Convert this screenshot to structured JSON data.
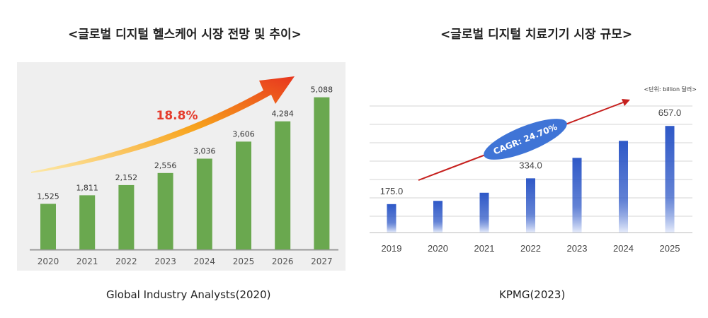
{
  "left": {
    "title": "<글로벌 디지털 헬스케어 시장 전망 및 추이>",
    "source": "Global Industry Analysts(2020)"
  },
  "right": {
    "title": "<글로벌 디지털 치료기기 시장 규모>",
    "source": "KPMG(2023)"
  },
  "chart_data": [
    {
      "type": "bar",
      "categories": [
        "2020",
        "2021",
        "2022",
        "2023",
        "2024",
        "2025",
        "2026",
        "2027"
      ],
      "values": [
        1525,
        1811,
        2152,
        2556,
        3036,
        3606,
        4284,
        5088
      ],
      "value_labels": [
        "1,525",
        "1,811",
        "2,152",
        "2,556",
        "3,036",
        "3,606",
        "4,284",
        "5,088"
      ],
      "growth_annotation": "18.8%",
      "ylim": [
        0,
        5600
      ],
      "bar_color": "#6aa84f",
      "background": "#efefef",
      "arrow_colors": [
        "#fde9a8",
        "#f7a21b",
        "#e8361e"
      ]
    },
    {
      "type": "bar",
      "categories": [
        "2019",
        "2020",
        "2021",
        "2022",
        "2023",
        "2024",
        "2025"
      ],
      "values": [
        175.0,
        195,
        245,
        334.0,
        460,
        565,
        657.0
      ],
      "value_labels": [
        "175.0",
        "",
        "",
        "334.0",
        "",
        "",
        "657.0"
      ],
      "unit_note": "<단위: billion 달러>",
      "cagr_label": "CAGR: 24.70%",
      "ylim": [
        0,
        780
      ],
      "grid": true,
      "bar_color": "#2e58c7",
      "bar_fade_color": "#e6ecfb",
      "trend_color": "#c6201e",
      "ellipse_color": "#3f74d6"
    }
  ]
}
